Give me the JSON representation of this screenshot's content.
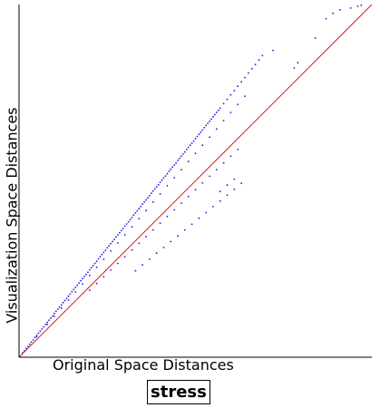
{
  "chart_data": {
    "type": "scatter",
    "title": "stress",
    "xlabel": "Original Space Distances",
    "ylabel": "Visualization Space Distances",
    "xlim": [
      0,
      1
    ],
    "ylim": [
      0,
      1
    ],
    "grid": false,
    "reference_line": {
      "x": [
        0,
        1
      ],
      "y": [
        0,
        1
      ],
      "color": "#d02020"
    },
    "series": [
      {
        "color": "#1a1ae6",
        "x": [
          0.01,
          0.015,
          0.02,
          0.025,
          0.03,
          0.035,
          0.04,
          0.045,
          0.05,
          0.055,
          0.06,
          0.065,
          0.07,
          0.075,
          0.08,
          0.085,
          0.09,
          0.095,
          0.1,
          0.105,
          0.11,
          0.115,
          0.12,
          0.125,
          0.13,
          0.135,
          0.14,
          0.145,
          0.15,
          0.155,
          0.16,
          0.165,
          0.17,
          0.175,
          0.18,
          0.185,
          0.19,
          0.195,
          0.2,
          0.205,
          0.21,
          0.215,
          0.22,
          0.225,
          0.23,
          0.235,
          0.24,
          0.245,
          0.25,
          0.255,
          0.26,
          0.265,
          0.27,
          0.275,
          0.28,
          0.285,
          0.29,
          0.295,
          0.3,
          0.305,
          0.31,
          0.315,
          0.32,
          0.325,
          0.33,
          0.335,
          0.34,
          0.345,
          0.35,
          0.355,
          0.36,
          0.365,
          0.37,
          0.375,
          0.38,
          0.385,
          0.39,
          0.395,
          0.4,
          0.405,
          0.41,
          0.415,
          0.42,
          0.425,
          0.43,
          0.435,
          0.44,
          0.445,
          0.45,
          0.455,
          0.46,
          0.465,
          0.47,
          0.475,
          0.48,
          0.485,
          0.49,
          0.495,
          0.5,
          0.505,
          0.51,
          0.515,
          0.52,
          0.525,
          0.53,
          0.535,
          0.54,
          0.545,
          0.55,
          0.555,
          0.56,
          0.565,
          0.57,
          0.58,
          0.59,
          0.6,
          0.61,
          0.62,
          0.63,
          0.64,
          0.65,
          0.66,
          0.67,
          0.68,
          0.69,
          0.05,
          0.08,
          0.1,
          0.12,
          0.14,
          0.16,
          0.18,
          0.2,
          0.22,
          0.24,
          0.26,
          0.28,
          0.3,
          0.32,
          0.34,
          0.36,
          0.38,
          0.4,
          0.42,
          0.44,
          0.46,
          0.48,
          0.5,
          0.52,
          0.54,
          0.56,
          0.58,
          0.6,
          0.62,
          0.64,
          0.2,
          0.22,
          0.24,
          0.26,
          0.28,
          0.3,
          0.32,
          0.34,
          0.36,
          0.38,
          0.4,
          0.42,
          0.44,
          0.46,
          0.48,
          0.5,
          0.52,
          0.54,
          0.56,
          0.58,
          0.6,
          0.62,
          0.33,
          0.35,
          0.37,
          0.39,
          0.41,
          0.43,
          0.45,
          0.47,
          0.49,
          0.51,
          0.53,
          0.55,
          0.57,
          0.59,
          0.61,
          0.63,
          0.57,
          0.59,
          0.61,
          0.72,
          0.78,
          0.79,
          0.84,
          0.87,
          0.89,
          0.91,
          0.94,
          0.96,
          0.97
        ],
        "y": [
          0.012,
          0.018,
          0.025,
          0.031,
          0.037,
          0.043,
          0.049,
          0.056,
          0.062,
          0.068,
          0.074,
          0.08,
          0.086,
          0.093,
          0.099,
          0.105,
          0.111,
          0.117,
          0.124,
          0.13,
          0.136,
          0.142,
          0.148,
          0.155,
          0.161,
          0.167,
          0.173,
          0.179,
          0.186,
          0.192,
          0.198,
          0.204,
          0.21,
          0.217,
          0.223,
          0.229,
          0.235,
          0.241,
          0.248,
          0.254,
          0.26,
          0.266,
          0.272,
          0.279,
          0.285,
          0.291,
          0.297,
          0.303,
          0.31,
          0.316,
          0.322,
          0.328,
          0.334,
          0.341,
          0.347,
          0.353,
          0.359,
          0.365,
          0.372,
          0.378,
          0.384,
          0.39,
          0.396,
          0.403,
          0.409,
          0.415,
          0.421,
          0.427,
          0.434,
          0.44,
          0.446,
          0.452,
          0.458,
          0.465,
          0.471,
          0.477,
          0.483,
          0.489,
          0.496,
          0.502,
          0.508,
          0.514,
          0.52,
          0.527,
          0.533,
          0.539,
          0.545,
          0.551,
          0.558,
          0.564,
          0.57,
          0.576,
          0.582,
          0.589,
          0.595,
          0.601,
          0.607,
          0.613,
          0.62,
          0.626,
          0.632,
          0.638,
          0.644,
          0.651,
          0.657,
          0.663,
          0.669,
          0.675,
          0.682,
          0.688,
          0.694,
          0.7,
          0.706,
          0.719,
          0.731,
          0.744,
          0.756,
          0.768,
          0.781,
          0.793,
          0.806,
          0.818,
          0.83,
          0.843,
          0.855,
          0.058,
          0.093,
          0.116,
          0.139,
          0.162,
          0.185,
          0.208,
          0.232,
          0.255,
          0.278,
          0.301,
          0.324,
          0.347,
          0.37,
          0.393,
          0.416,
          0.44,
          0.463,
          0.486,
          0.509,
          0.532,
          0.555,
          0.578,
          0.601,
          0.624,
          0.647,
          0.671,
          0.694,
          0.717,
          0.74,
          0.19,
          0.209,
          0.228,
          0.247,
          0.266,
          0.285,
          0.304,
          0.323,
          0.342,
          0.361,
          0.38,
          0.399,
          0.418,
          0.437,
          0.456,
          0.475,
          0.494,
          0.513,
          0.532,
          0.551,
          0.57,
          0.589,
          0.245,
          0.262,
          0.278,
          0.295,
          0.311,
          0.328,
          0.344,
          0.361,
          0.377,
          0.394,
          0.41,
          0.427,
          0.443,
          0.46,
          0.476,
          0.493,
          0.47,
          0.488,
          0.505,
          0.87,
          0.82,
          0.835,
          0.905,
          0.96,
          0.975,
          0.985,
          0.99,
          0.995,
          0.998
        ]
      }
    ]
  }
}
